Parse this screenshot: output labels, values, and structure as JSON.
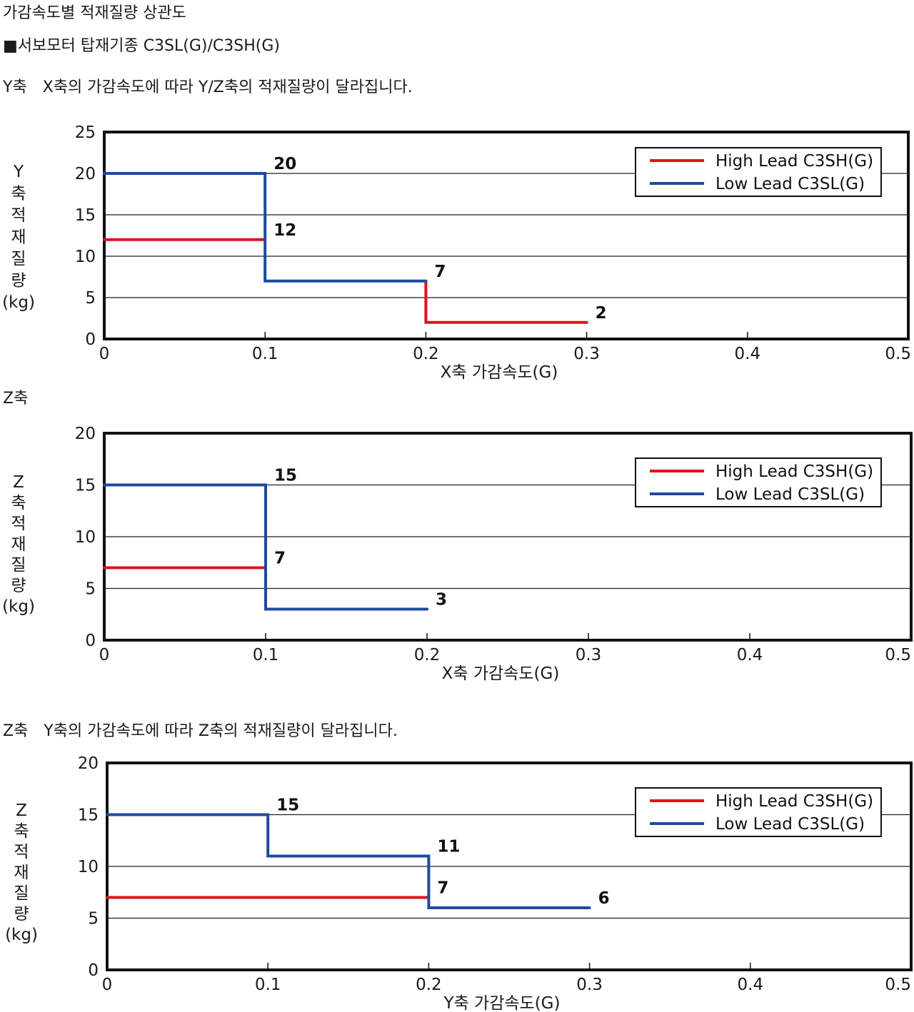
{
  "page": {
    "title": "가감속도별 적재질량 상관도",
    "series_heading": "■서보모터 탑재기종 C3SL(G)/C3SH(G)",
    "section_captions": [
      "Y축　X축의 가감속도에 따라 Y/Z축의 적재질량이 달라집니다.",
      "Z축",
      "Z축　Y축의 가감속도에 따라 Z축의 적재질량이 달라집니다."
    ]
  },
  "colors": {
    "high_lead": "#e0121e",
    "low_lead": "#1f4a9c",
    "frame": "#111111",
    "grid": "#222222"
  },
  "chart_data": [
    {
      "type": "line",
      "step": true,
      "xlabel": "X축 가감속도(G)",
      "ylabel_lines": [
        "Y",
        "축",
        "적",
        "재",
        "질",
        "량",
        "(kg)"
      ],
      "xlim": [
        0,
        0.5
      ],
      "ylim": [
        0,
        25
      ],
      "xticks": [
        0,
        0.1,
        0.2,
        0.3,
        0.4,
        0.5
      ],
      "xtick_labels": [
        "0",
        "0.1",
        "0.2",
        "0.3",
        "0.4",
        "0.5"
      ],
      "yticks": [
        0,
        5,
        10,
        15,
        20,
        25
      ],
      "ytick_labels": [
        "0",
        "5",
        "10",
        "15",
        "20",
        "25"
      ],
      "grid": true,
      "legend_position": "top-right",
      "series": [
        {
          "name": "High Lead C3SH(G)",
          "color_key": "high_lead",
          "points": [
            [
              0,
              12
            ],
            [
              0.1,
              12
            ]
          ],
          "then": [
            [
              0.2,
              7
            ],
            [
              0.2,
              2
            ],
            [
              0.3,
              2
            ]
          ]
        },
        {
          "name": "Low Lead C3SL(G)",
          "color_key": "low_lead",
          "points": [
            [
              0,
              20
            ],
            [
              0.1,
              20
            ],
            [
              0.1,
              7
            ],
            [
              0.2,
              7
            ]
          ]
        }
      ],
      "annotations": [
        {
          "text": "20",
          "x": 0.1,
          "y": 20
        },
        {
          "text": "12",
          "x": 0.1,
          "y": 12
        },
        {
          "text": "7",
          "x": 0.2,
          "y": 7
        },
        {
          "text": "2",
          "x": 0.3,
          "y": 2
        }
      ]
    },
    {
      "type": "line",
      "step": true,
      "xlabel": "X축 가감속도(G)",
      "ylabel_lines": [
        "Z",
        "축",
        "적",
        "재",
        "질",
        "량",
        "(kg)"
      ],
      "xlim": [
        0,
        0.5
      ],
      "ylim": [
        0,
        20
      ],
      "xticks": [
        0,
        0.1,
        0.2,
        0.3,
        0.4,
        0.5
      ],
      "xtick_labels": [
        "0",
        "0.1",
        "0.2",
        "0.3",
        "0.4",
        "0.5"
      ],
      "yticks": [
        0,
        5,
        10,
        15,
        20
      ],
      "ytick_labels": [
        "0",
        "5",
        "10",
        "15",
        "20"
      ],
      "grid": true,
      "legend_position": "top-right",
      "series": [
        {
          "name": "High Lead C3SH(G)",
          "color_key": "high_lead",
          "points": [
            [
              0,
              7
            ],
            [
              0.1,
              7
            ]
          ]
        },
        {
          "name": "Low Lead C3SL(G)",
          "color_key": "low_lead",
          "points": [
            [
              0,
              15
            ],
            [
              0.1,
              15
            ],
            [
              0.1,
              3
            ],
            [
              0.2,
              3
            ]
          ]
        }
      ],
      "annotations": [
        {
          "text": "15",
          "x": 0.1,
          "y": 15
        },
        {
          "text": "7",
          "x": 0.1,
          "y": 7
        },
        {
          "text": "3",
          "x": 0.2,
          "y": 3
        }
      ]
    },
    {
      "type": "line",
      "step": true,
      "xlabel": "Y축 가감속도(G)",
      "ylabel_lines": [
        "Z",
        "축",
        "적",
        "재",
        "질",
        "량",
        "(kg)"
      ],
      "xlim": [
        0,
        0.5
      ],
      "ylim": [
        0,
        20
      ],
      "xticks": [
        0,
        0.1,
        0.2,
        0.3,
        0.4,
        0.5
      ],
      "xtick_labels": [
        "0",
        "0.1",
        "0.2",
        "0.3",
        "0.4",
        "0.5"
      ],
      "yticks": [
        0,
        5,
        10,
        15,
        20
      ],
      "ytick_labels": [
        "0",
        "5",
        "10",
        "15",
        "20"
      ],
      "grid": true,
      "legend_position": "top-right",
      "series": [
        {
          "name": "High Lead C3SH(G)",
          "color_key": "high_lead",
          "points": [
            [
              0,
              7
            ],
            [
              0.2,
              7
            ]
          ]
        },
        {
          "name": "Low Lead C3SL(G)",
          "color_key": "low_lead",
          "points": [
            [
              0,
              15
            ],
            [
              0.1,
              15
            ],
            [
              0.1,
              11
            ],
            [
              0.2,
              11
            ],
            [
              0.2,
              6
            ],
            [
              0.3,
              6
            ]
          ]
        }
      ],
      "annotations": [
        {
          "text": "15",
          "x": 0.1,
          "y": 15
        },
        {
          "text": "11",
          "x": 0.2,
          "y": 11
        },
        {
          "text": "7",
          "x": 0.2,
          "y": 7
        },
        {
          "text": "6",
          "x": 0.3,
          "y": 6
        }
      ]
    }
  ]
}
